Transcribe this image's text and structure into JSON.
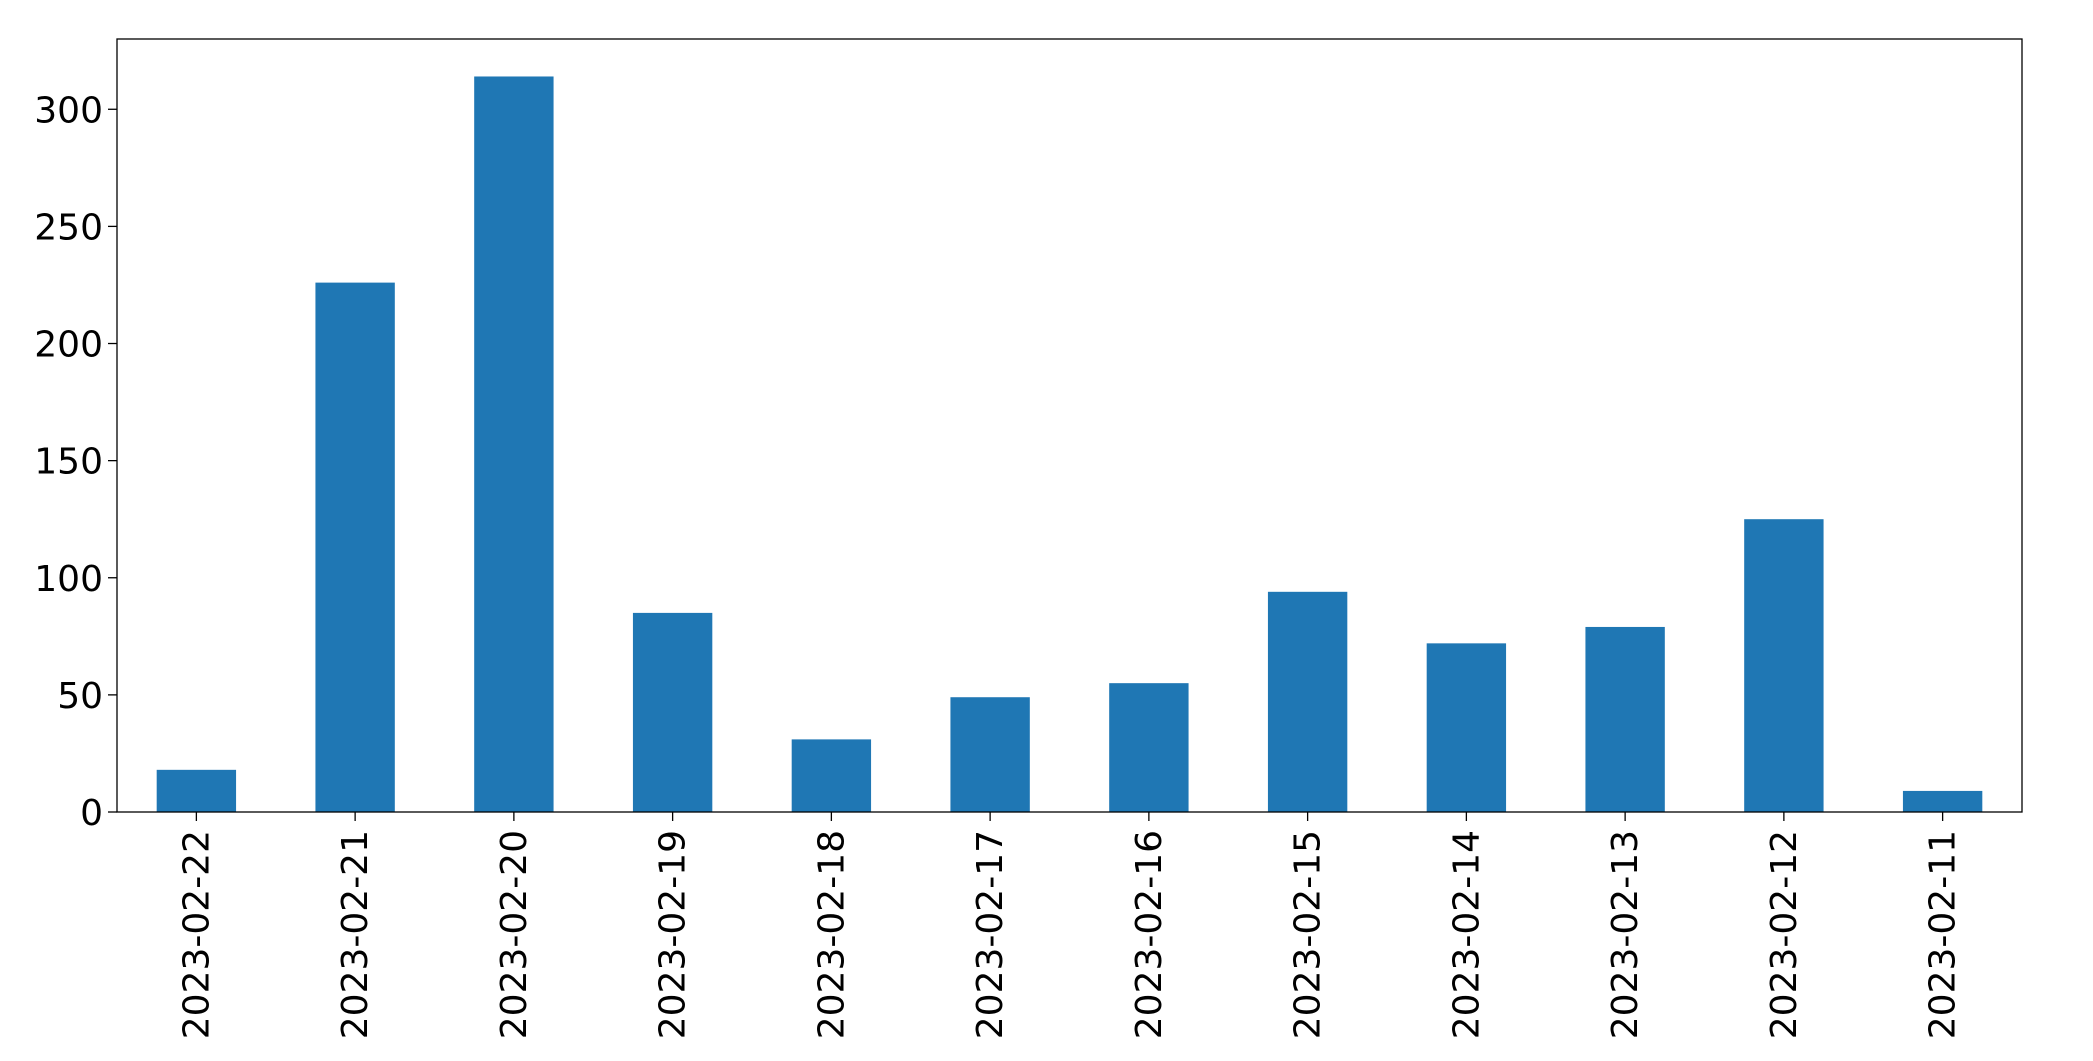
{
  "chart_data": {
    "type": "bar",
    "title": "",
    "xlabel": "",
    "ylabel": "",
    "categories": [
      "2023-02-22",
      "2023-02-21",
      "2023-02-20",
      "2023-02-19",
      "2023-02-18",
      "2023-02-17",
      "2023-02-16",
      "2023-02-15",
      "2023-02-14",
      "2023-02-13",
      "2023-02-12",
      "2023-02-11"
    ],
    "values": [
      18,
      226,
      314,
      85,
      31,
      49,
      55,
      94,
      72,
      79,
      125,
      9
    ],
    "ylim": [
      0,
      330
    ],
    "yticks": [
      0,
      50,
      100,
      150,
      200,
      250,
      300
    ],
    "bar_color": "#1f77b4",
    "grid": false,
    "legend": "none"
  }
}
